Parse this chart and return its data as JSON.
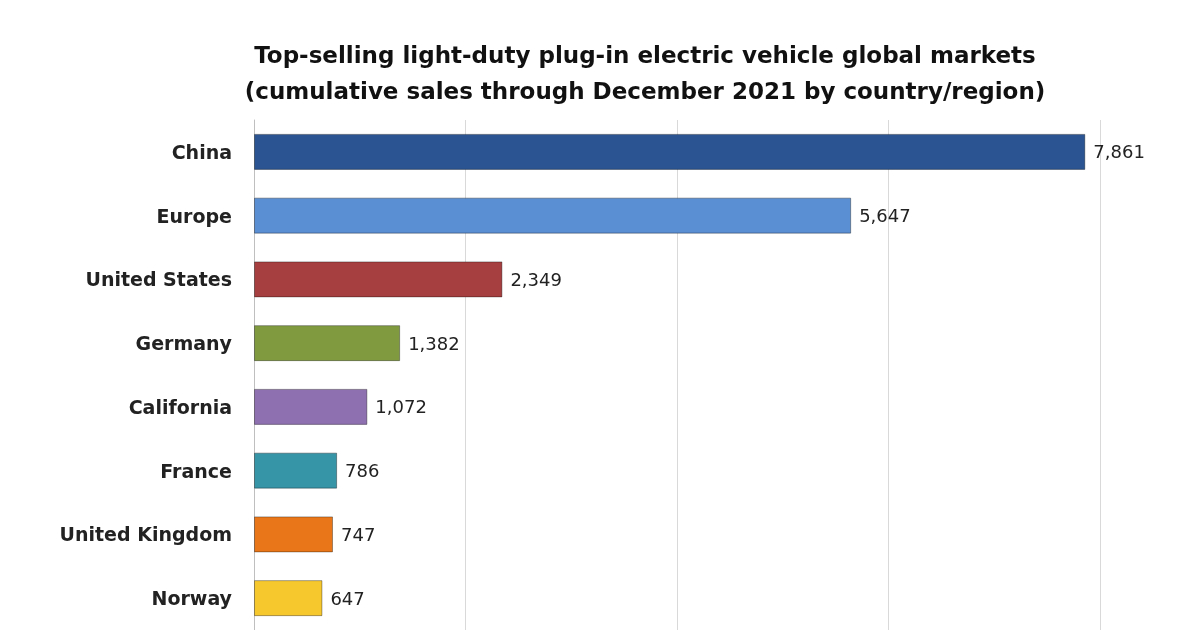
{
  "chart_data": {
    "type": "bar",
    "orientation": "horizontal",
    "title": "Top-selling light-duty plug-in electric vehicle global markets\n(cumulative sales through December 2021 by country/region)",
    "categories": [
      "China",
      "Europe",
      "United States",
      "Germany",
      "California",
      "France",
      "United Kingdom",
      "Norway"
    ],
    "values": [
      7861,
      5647,
      2349,
      1382,
      1072,
      786,
      747,
      647
    ],
    "value_labels": [
      "7,861",
      "5,647",
      "2,349",
      "1,382",
      "1,072",
      "786",
      "747",
      "647"
    ],
    "colors": [
      "#2a5592",
      "#5b8fd4",
      "#a63f3f",
      "#7f9a3f",
      "#8e6fb0",
      "#3795a8",
      "#e9771a",
      "#f7c72e"
    ],
    "grid": "x",
    "tick_labels": "y"
  }
}
